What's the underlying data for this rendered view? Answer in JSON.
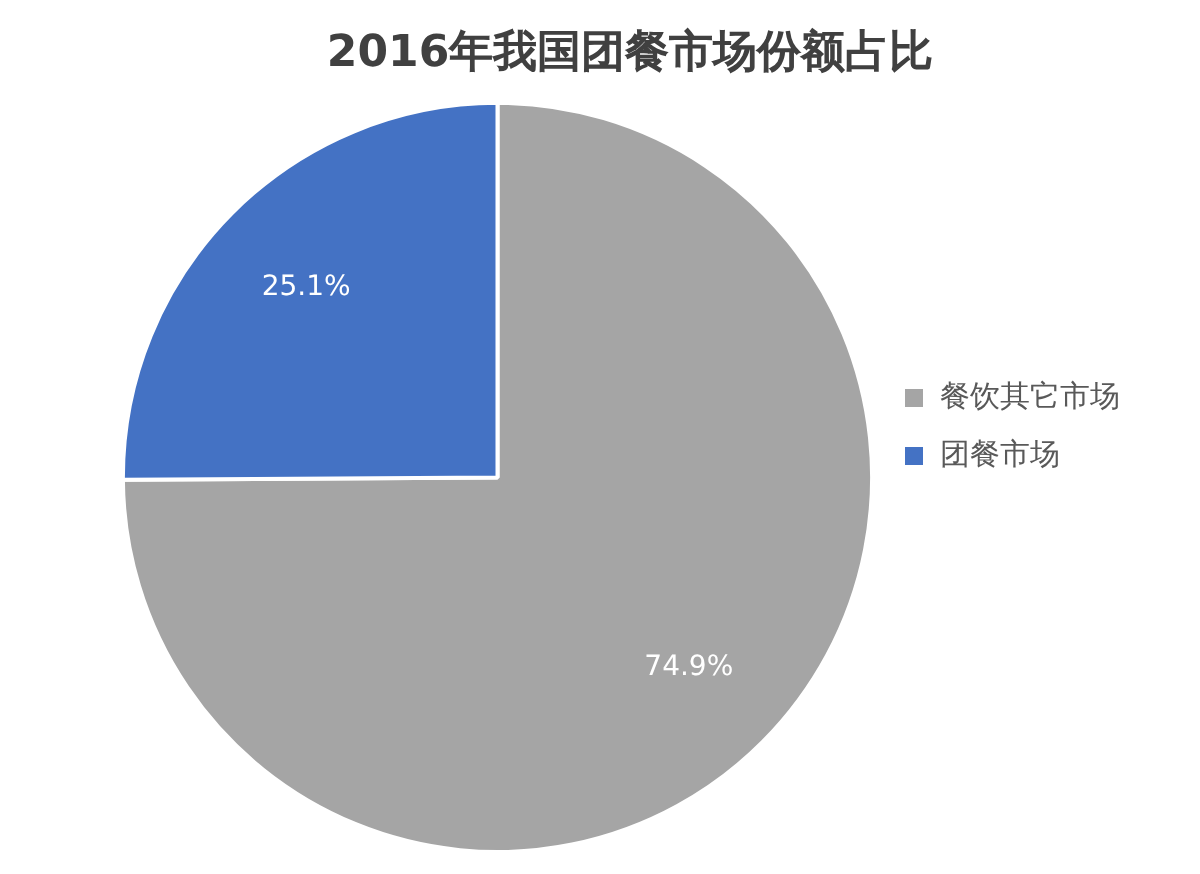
{
  "chart_data": {
    "type": "pie",
    "title": "2016年我国团餐市场份额占比",
    "categories": [
      "餐饮其它市场",
      "团餐市场"
    ],
    "values": [
      74.9,
      25.1
    ],
    "colors": [
      "#a5a5a5",
      "#4472c4"
    ],
    "value_labels": [
      "74.9%",
      "25.1%"
    ],
    "legend": "right"
  }
}
